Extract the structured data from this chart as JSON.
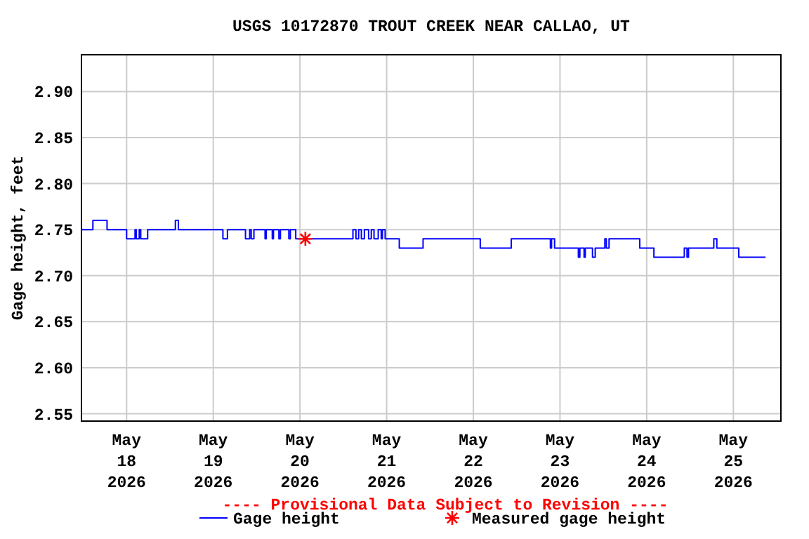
{
  "chart_data": {
    "type": "step",
    "title": "USGS 10172870 TROUT CREEK NEAR CALLAO, UT",
    "ylabel": "Gage height, feet",
    "annotations": [
      "---- Provisional Data Subject to Revision ----"
    ],
    "xlim": [
      "2026-05-17T11:30",
      "2026-05-25T13:10"
    ],
    "xticks": [
      {
        "value": "2026-05-18",
        "label": "May\n18\n2026"
      },
      {
        "value": "2026-05-19",
        "label": "May\n19\n2026"
      },
      {
        "value": "2026-05-20",
        "label": "May\n20\n2026"
      },
      {
        "value": "2026-05-21",
        "label": "May\n21\n2026"
      },
      {
        "value": "2026-05-22",
        "label": "May\n22\n2026"
      },
      {
        "value": "2026-05-23",
        "label": "May\n23\n2026"
      },
      {
        "value": "2026-05-24",
        "label": "May\n24\n2026"
      },
      {
        "value": "2026-05-25",
        "label": "May\n25\n2026"
      }
    ],
    "ylim": [
      2.542,
      2.94
    ],
    "yticks": [
      2.55,
      {
        "value": 2.6,
        "label": "2.60"
      },
      2.65,
      {
        "value": 2.7,
        "label": "2.70"
      },
      2.75,
      {
        "value": 2.8,
        "label": "2.80"
      },
      2.85,
      {
        "value": 2.9,
        "label": "2.90"
      }
    ],
    "grid": true,
    "legend": "bottom",
    "series": [
      {
        "name": "Gage height",
        "color": "#0000ff",
        "line_style": "solid",
        "marker": "none",
        "x": [
          "2026-05-17T11:30",
          "2026-05-17T14:40",
          "2026-05-17T18:35",
          "2026-05-18T00:00",
          "2026-05-18T02:20",
          "2026-05-18T02:40",
          "2026-05-18T03:30",
          "2026-05-18T03:55",
          "2026-05-18T05:50",
          "2026-05-18T13:30",
          "2026-05-18T14:20",
          "2026-05-19T02:40",
          "2026-05-19T03:55",
          "2026-05-19T08:55",
          "2026-05-19T10:05",
          "2026-05-19T10:30",
          "2026-05-19T11:15",
          "2026-05-19T14:20",
          "2026-05-19T14:40",
          "2026-05-19T16:20",
          "2026-05-19T16:40",
          "2026-05-19T18:10",
          "2026-05-19T18:35",
          "2026-05-19T20:55",
          "2026-05-19T21:20",
          "2026-05-19T22:50",
          "2026-05-20T14:40",
          "2026-05-20T15:30",
          "2026-05-20T16:15",
          "2026-05-20T17:00",
          "2026-05-20T17:50",
          "2026-05-20T19:00",
          "2026-05-20T19:45",
          "2026-05-20T20:30",
          "2026-05-20T21:40",
          "2026-05-20T22:30",
          "2026-05-20T22:50",
          "2026-05-20T23:35",
          "2026-05-21T03:30",
          "2026-05-21T10:05",
          "2026-05-22T01:55",
          "2026-05-22T10:30",
          "2026-05-22T21:20",
          "2026-05-22T21:40",
          "2026-05-22T22:30",
          "2026-05-23T05:05",
          "2026-05-23T05:30",
          "2026-05-23T06:40",
          "2026-05-23T07:00",
          "2026-05-23T09:00",
          "2026-05-23T09:45",
          "2026-05-23T12:25",
          "2026-05-23T12:50",
          "2026-05-23T13:35",
          "2026-05-23T22:05",
          "2026-05-24T02:00",
          "2026-05-24T10:25",
          "2026-05-24T11:10",
          "2026-05-24T11:35",
          "2026-05-24T18:35",
          "2026-05-24T19:25",
          "2026-05-25T01:30",
          "2026-05-25T08:55"
        ],
        "values": [
          2.75,
          2.76,
          2.75,
          2.74,
          2.75,
          2.74,
          2.75,
          2.74,
          2.75,
          2.76,
          2.75,
          2.74,
          2.75,
          2.74,
          2.75,
          2.74,
          2.75,
          2.74,
          2.75,
          2.74,
          2.75,
          2.74,
          2.75,
          2.74,
          2.75,
          2.74,
          2.75,
          2.74,
          2.75,
          2.74,
          2.75,
          2.74,
          2.75,
          2.74,
          2.75,
          2.74,
          2.75,
          2.74,
          2.73,
          2.74,
          2.73,
          2.74,
          2.73,
          2.74,
          2.73,
          2.72,
          2.73,
          2.72,
          2.73,
          2.72,
          2.73,
          2.74,
          2.73,
          2.74,
          2.73,
          2.72,
          2.73,
          2.72,
          2.73,
          2.74,
          2.73,
          2.72,
          2.72
        ]
      },
      {
        "name": "Measured gage height",
        "type": "scatter",
        "color": "#ff0000",
        "marker": "cross",
        "x": [
          "2026-05-20T01:30"
        ],
        "values": [
          2.74
        ]
      }
    ]
  }
}
